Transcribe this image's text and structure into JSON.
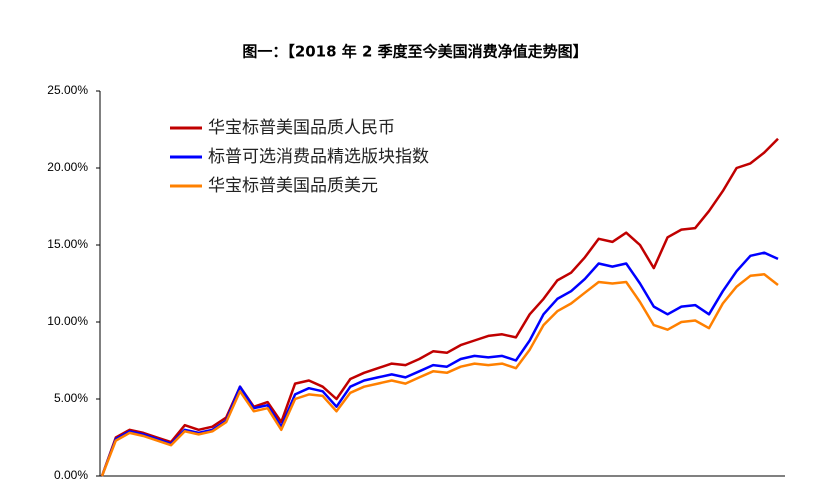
{
  "chart_data": {
    "type": "line",
    "title": "图一：【2018 年 2 季度至今美国消费净值走势图】",
    "categories": [
      null,
      null,
      null,
      null,
      null,
      null,
      null,
      null,
      null,
      null,
      null,
      null,
      null,
      null,
      null,
      null,
      null,
      null,
      null,
      null,
      null,
      null,
      null,
      null,
      null,
      null,
      null,
      null,
      null,
      null,
      null,
      null,
      null,
      null,
      null,
      null,
      null,
      null,
      null,
      null,
      null,
      null,
      null,
      null,
      null,
      null,
      null,
      null,
      null,
      null
    ],
    "ylim": [
      0,
      25
    ],
    "yticks": [
      {
        "value": 0,
        "label": "0.00%"
      },
      {
        "value": 5,
        "label": "5.00%"
      },
      {
        "value": 10,
        "label": "10.00%"
      },
      {
        "value": 15,
        "label": "15.00%"
      },
      {
        "value": 20,
        "label": "20.00%"
      },
      {
        "value": 25,
        "label": "25.00%"
      }
    ],
    "legend": "top-left",
    "series": [
      {
        "name": "华宝标普美国品质人民币",
        "color": "#c00000",
        "values": [
          0,
          2.5,
          3.0,
          2.8,
          2.5,
          2.2,
          3.3,
          3.0,
          3.2,
          3.8,
          5.8,
          4.5,
          4.8,
          3.5,
          6.0,
          6.2,
          5.8,
          5.0,
          6.3,
          6.7,
          7.0,
          7.3,
          7.2,
          7.6,
          8.1,
          8.0,
          8.5,
          8.8,
          9.1,
          9.2,
          9.0,
          10.5,
          11.5,
          12.7,
          13.2,
          14.2,
          15.4,
          15.2,
          15.8,
          15.0,
          13.5,
          15.5,
          16.0,
          16.1,
          17.2,
          18.5,
          20.0,
          20.3,
          21.0,
          21.9
        ]
      },
      {
        "name": "标普可选消费品精选版块指数",
        "color": "#0000ff",
        "values": [
          0,
          2.4,
          2.9,
          2.7,
          2.4,
          2.1,
          3.0,
          2.8,
          3.0,
          3.6,
          5.8,
          4.4,
          4.6,
          3.2,
          5.3,
          5.7,
          5.5,
          4.5,
          5.8,
          6.2,
          6.4,
          6.6,
          6.4,
          6.8,
          7.2,
          7.1,
          7.6,
          7.8,
          7.7,
          7.8,
          7.5,
          8.8,
          10.5,
          11.5,
          12.0,
          12.8,
          13.8,
          13.6,
          13.8,
          12.5,
          11.0,
          10.5,
          11.0,
          11.1,
          10.5,
          12.0,
          13.3,
          14.3,
          14.5,
          14.1
        ]
      },
      {
        "name": "华宝标普美国品质美元",
        "color": "#ff8000",
        "values": [
          0,
          2.3,
          2.8,
          2.6,
          2.3,
          2.0,
          2.9,
          2.7,
          2.9,
          3.5,
          5.5,
          4.2,
          4.4,
          3.0,
          5.0,
          5.3,
          5.2,
          4.2,
          5.4,
          5.8,
          6.0,
          6.2,
          6.0,
          6.4,
          6.8,
          6.7,
          7.1,
          7.3,
          7.2,
          7.3,
          7.0,
          8.2,
          9.8,
          10.7,
          11.2,
          11.9,
          12.6,
          12.5,
          12.6,
          11.3,
          9.8,
          9.5,
          10.0,
          10.1,
          9.6,
          11.2,
          12.3,
          13.0,
          13.1,
          12.4
        ]
      }
    ]
  }
}
